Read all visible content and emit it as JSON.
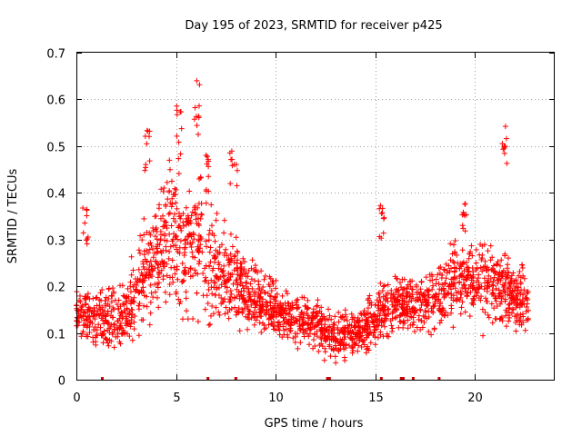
{
  "chart_data": {
    "type": "scatter",
    "title": "Day 195 of 2023, SRMTID for receiver p425",
    "xlabel": "GPS time / hours",
    "ylabel": "SRMTID / TECUs",
    "xlim": [
      0,
      24
    ],
    "ylim": [
      0,
      0.7
    ],
    "xticks": [
      0,
      5,
      10,
      15,
      20
    ],
    "xtick_labels": [
      "0",
      "5",
      "10",
      "15",
      "20"
    ],
    "yticks": [
      0,
      0.1,
      0.2,
      0.3,
      0.4,
      0.5,
      0.6,
      0.7
    ],
    "ytick_labels": [
      "0",
      "0.1",
      "0.2",
      "0.3",
      "0.4",
      "0.5",
      "0.6",
      "0.7"
    ],
    "grid": true,
    "marker": "+",
    "color": "#ff0000",
    "trend": {
      "x": [
        0,
        1,
        2,
        2.5,
        3,
        3.5,
        4,
        5,
        5.5,
        6,
        6.5,
        7,
        8,
        9,
        10,
        11,
        12,
        12.5,
        13,
        14,
        14.5,
        15,
        16,
        17,
        18,
        19,
        20,
        21,
        22,
        22.7
      ],
      "y": [
        0.14,
        0.13,
        0.13,
        0.14,
        0.18,
        0.24,
        0.27,
        0.3,
        0.28,
        0.29,
        0.26,
        0.23,
        0.2,
        0.17,
        0.15,
        0.13,
        0.12,
        0.1,
        0.09,
        0.1,
        0.11,
        0.13,
        0.16,
        0.16,
        0.17,
        0.22,
        0.21,
        0.2,
        0.18,
        0.16
      ]
    },
    "spread": {
      "x": [
        0,
        2,
        3,
        4,
        5,
        6,
        7,
        8,
        9,
        10,
        12,
        14,
        15,
        17,
        18,
        20,
        22,
        22.7
      ],
      "y": [
        0.05,
        0.05,
        0.08,
        0.1,
        0.12,
        0.12,
        0.1,
        0.08,
        0.06,
        0.05,
        0.04,
        0.04,
        0.05,
        0.05,
        0.06,
        0.08,
        0.06,
        0.05
      ]
    },
    "clusters": [
      {
        "x": [
          0.3,
          0.6
        ],
        "y": [
          0.29,
          0.4
        ]
      },
      {
        "x": [
          3.4,
          3.7
        ],
        "y": [
          0.44,
          0.56
        ]
      },
      {
        "x": [
          4.5,
          5.0
        ],
        "y": [
          0.36,
          0.47
        ]
      },
      {
        "x": [
          5.0,
          5.3
        ],
        "y": [
          0.45,
          0.6
        ]
      },
      {
        "x": [
          5.9,
          6.2
        ],
        "y": [
          0.52,
          0.65
        ]
      },
      {
        "x": [
          6.5,
          6.7
        ],
        "y": [
          0.4,
          0.49
        ]
      },
      {
        "x": [
          7.7,
          8.1
        ],
        "y": [
          0.41,
          0.5
        ]
      },
      {
        "x": [
          15.2,
          15.5
        ],
        "y": [
          0.3,
          0.39
        ]
      },
      {
        "x": [
          19.3,
          19.6
        ],
        "y": [
          0.3,
          0.38
        ]
      },
      {
        "x": [
          21.3,
          21.6
        ],
        "y": [
          0.45,
          0.56
        ]
      }
    ],
    "zero_markers": [
      1.3,
      6.6,
      8.0,
      12.6,
      12.7,
      15.3,
      16.3,
      16.4,
      16.9,
      18.2
    ]
  }
}
